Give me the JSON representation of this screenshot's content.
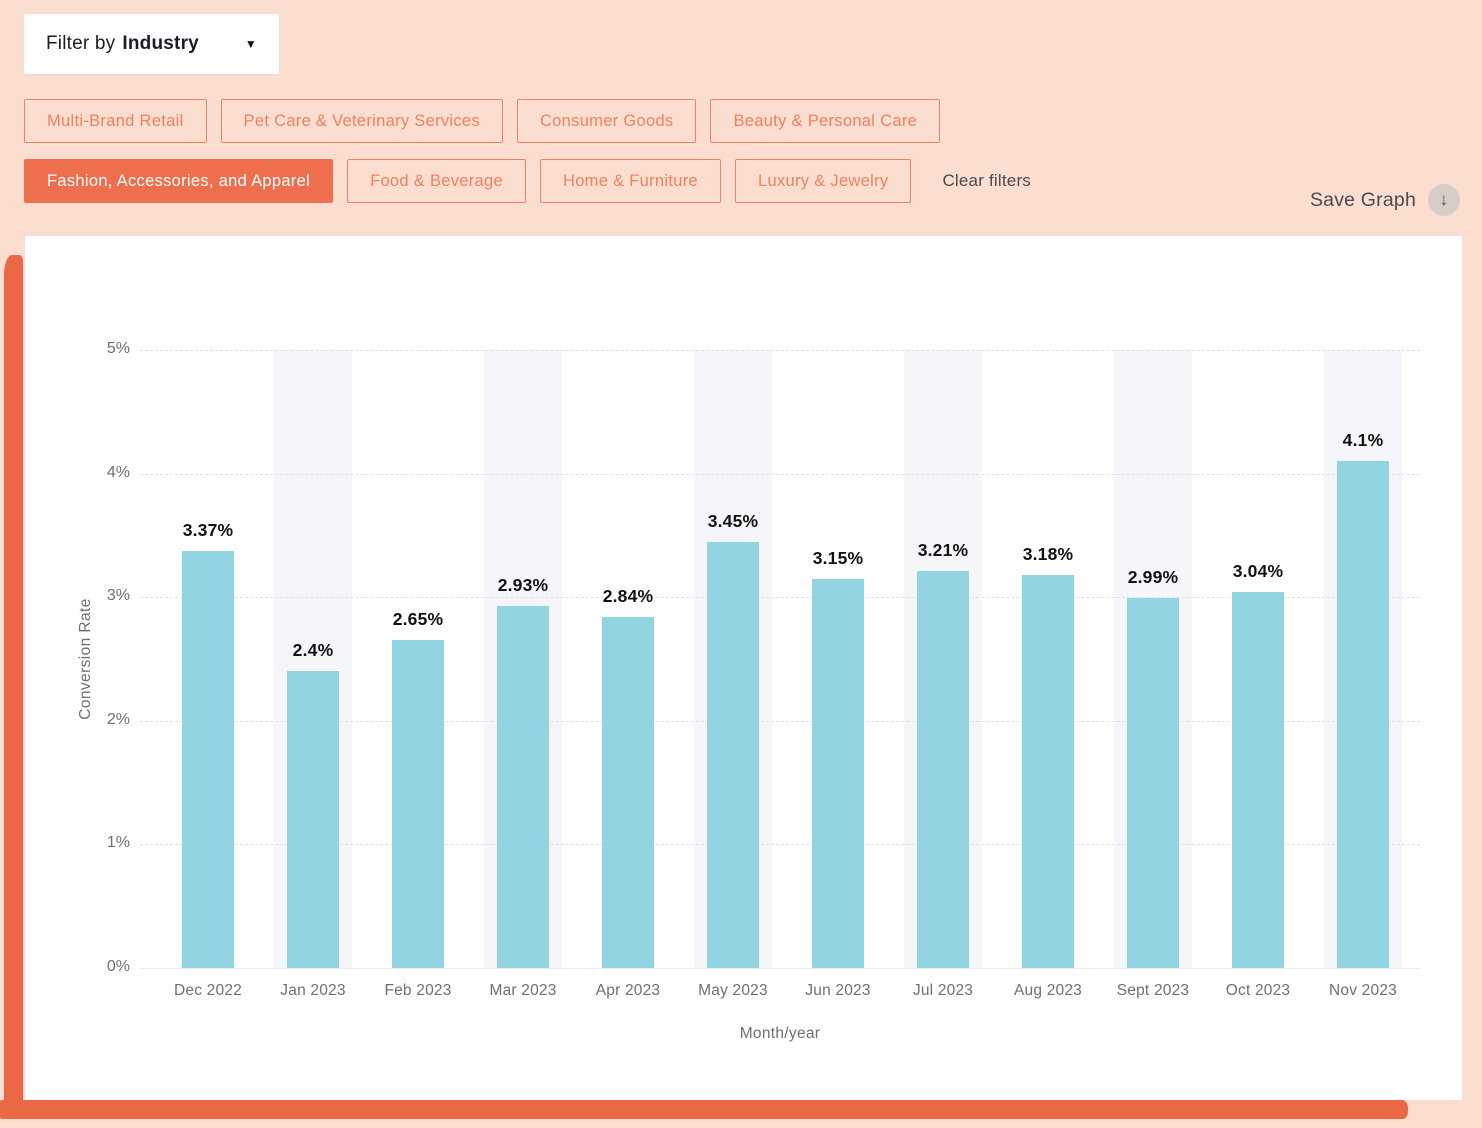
{
  "filter_dropdown": {
    "prefix": "Filter by",
    "value": "Industry",
    "caret_icon": "▼"
  },
  "filters": {
    "row1": [
      "Multi-Brand Retail",
      "Pet Care & Veterinary Services",
      "Consumer Goods",
      "Beauty & Personal Care"
    ],
    "row2": [
      "Fashion, Accessories, and Apparel",
      "Food & Beverage",
      "Home & Furniture",
      "Luxury & Jewelry"
    ],
    "selected": "Fashion, Accessories, and Apparel",
    "clear_label": "Clear filters"
  },
  "toolbar": {
    "save_graph_label": "Save Graph",
    "download_icon": "↓"
  },
  "chart_data": {
    "type": "bar",
    "categories": [
      "Dec 2022",
      "Jan 2023",
      "Feb 2023",
      "Mar 2023",
      "Apr 2023",
      "May 2023",
      "Jun 2023",
      "Jul 2023",
      "Aug 2023",
      "Sept 2023",
      "Oct 2023",
      "Nov 2023"
    ],
    "values": [
      3.37,
      2.4,
      2.65,
      2.93,
      2.84,
      3.45,
      3.15,
      3.21,
      3.18,
      2.99,
      3.04,
      4.1
    ],
    "value_labels": [
      "3.37%",
      "2.4%",
      "2.65%",
      "2.93%",
      "2.84%",
      "3.45%",
      "3.15%",
      "3.21%",
      "3.18%",
      "2.99%",
      "3.04%",
      "4.1%"
    ],
    "title": "",
    "xlabel": "Month/year",
    "ylabel": "Conversion Rate",
    "ylim": [
      0,
      5
    ],
    "yticks": [
      "0%",
      "1%",
      "2%",
      "3%",
      "4%",
      "5%"
    ],
    "grid": "horizontal-dashed",
    "legend": "none",
    "striped_columns": [
      1,
      3,
      5,
      7,
      9,
      11
    ],
    "bar_color": "#92d4e1",
    "stripe_color": "#f5f6fa"
  },
  "colors": {
    "page_background": "#fbdecf",
    "accent_orange": "#ee6e4e",
    "brush_orange": "#ea6845",
    "pill_border": "#ef8465",
    "pill_text": "#f0825f",
    "card_background": "#ffffff"
  }
}
